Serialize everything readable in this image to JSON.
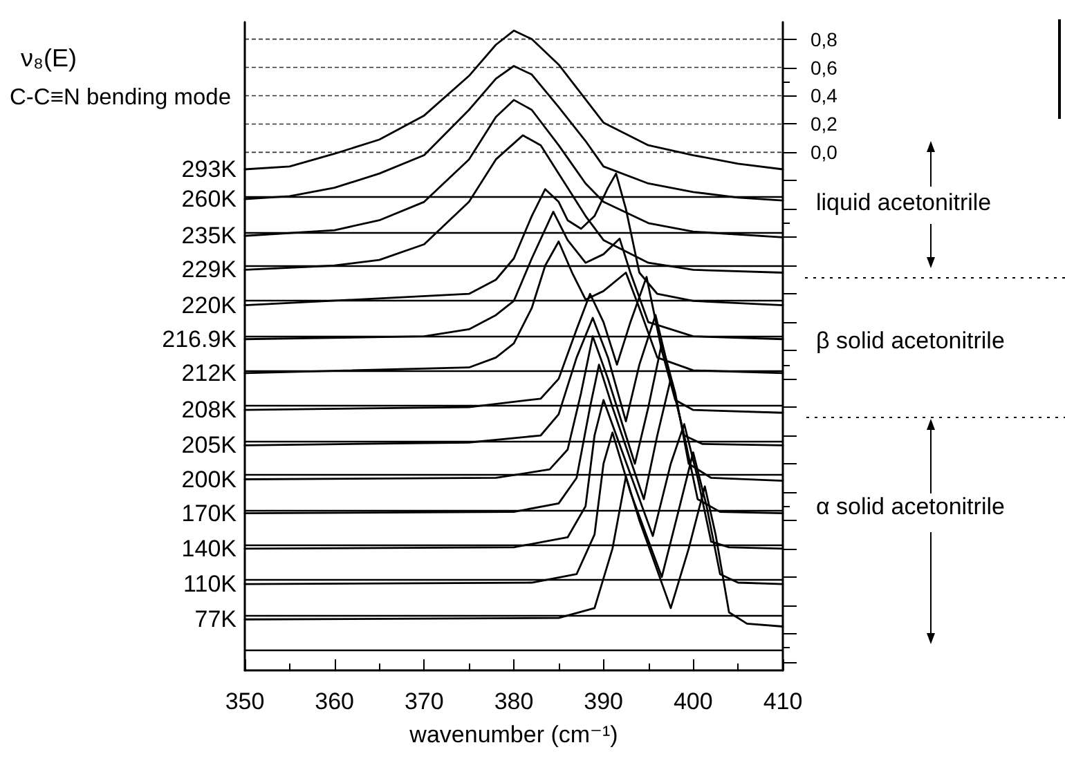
{
  "chart_data": {
    "type": "line",
    "title": "ν₈(E)",
    "subtitle": "C-C≡N bending mode",
    "xlabel": "wavenumber (cm⁻¹)",
    "annotations": [
      "liquid acetonitrile",
      "β solid acetonitrile",
      "α solid acetonitrile"
    ],
    "xlim": [
      350,
      410
    ],
    "xticks": [
      350,
      360,
      370,
      380,
      390,
      400,
      410
    ],
    "ylim": [
      -3.66,
      0.92
    ],
    "yticks": [
      {
        "value": 0.8,
        "label": "0,8"
      },
      {
        "value": 0.6,
        "label": "0,6"
      },
      {
        "value": 0.4,
        "label": "0,4"
      },
      {
        "value": 0.2,
        "label": "0,2"
      },
      {
        "value": 0,
        "label": "0,0"
      },
      {
        "value": -0.2,
        "label": null
      },
      {
        "value": -0.4,
        "label": null
      },
      {
        "value": -0.6,
        "label": null
      },
      {
        "value": -0.8,
        "label": null
      },
      {
        "value": -1,
        "label": null
      },
      {
        "value": -1.2,
        "label": null
      },
      {
        "value": -1.4,
        "label": null
      },
      {
        "value": -1.6,
        "label": null
      },
      {
        "value": -1.8,
        "label": null
      },
      {
        "value": -2,
        "label": null
      },
      {
        "value": -2.2,
        "label": null
      },
      {
        "value": -2.4,
        "label": null
      },
      {
        "value": -2.6,
        "label": null
      },
      {
        "value": -2.8,
        "label": null
      },
      {
        "value": -3,
        "label": null
      },
      {
        "value": -3.2,
        "label": null
      },
      {
        "value": -3.4,
        "label": null
      },
      {
        "value": -3.6,
        "label": null
      }
    ],
    "grid": "y",
    "legend": false,
    "marker": "none",
    "line_style": "solid",
    "ref_lines": [
      {
        "axis": "y",
        "value": -0.31,
        "color": "#000000"
      },
      {
        "axis": "y",
        "value": -0.57,
        "color": "#000000"
      },
      {
        "axis": "y",
        "value": -0.8,
        "color": "#000000"
      },
      {
        "axis": "y",
        "value": -1.05,
        "color": "#000000"
      },
      {
        "axis": "y",
        "value": -1.3,
        "color": "#000000"
      },
      {
        "axis": "y",
        "value": -1.54,
        "color": "#000000"
      },
      {
        "axis": "y",
        "value": -1.79,
        "color": "#000000"
      },
      {
        "axis": "y",
        "value": -2.04,
        "color": "#000000"
      },
      {
        "axis": "y",
        "value": -2.28,
        "color": "#000000"
      },
      {
        "axis": "y",
        "value": -2.53,
        "color": "#000000"
      },
      {
        "axis": "y",
        "value": -2.77,
        "color": "#000000"
      },
      {
        "axis": "y",
        "value": -3.02,
        "color": "#000000"
      },
      {
        "axis": "y",
        "value": -3.27,
        "color": "#000000"
      },
      {
        "axis": "y",
        "value": -3.52,
        "color": "#000000"
      }
    ],
    "series": [
      {
        "name": "293K",
        "color": "#000000",
        "x": [
          350,
          355,
          360,
          365,
          370,
          375,
          378,
          380,
          382,
          385,
          390,
          395,
          400,
          405,
          410
        ],
        "values": [
          -0.12,
          -0.1,
          -0.01,
          0.09,
          0.26,
          0.54,
          0.76,
          0.86,
          0.8,
          0.62,
          0.21,
          0.05,
          -0.02,
          -0.08,
          -0.12
        ]
      },
      {
        "name": "260K",
        "color": "#000000",
        "x": [
          350,
          355,
          360,
          365,
          370,
          375,
          378,
          380,
          382,
          385,
          388,
          390,
          395,
          400,
          405,
          410
        ],
        "values": [
          -0.33,
          -0.31,
          -0.25,
          -0.15,
          -0.02,
          0.3,
          0.52,
          0.61,
          0.55,
          0.32,
          0.08,
          -0.1,
          -0.22,
          -0.28,
          -0.32,
          -0.34
        ]
      },
      {
        "name": "235K",
        "color": "#000000",
        "x": [
          350,
          360,
          365,
          370,
          375,
          378,
          380,
          382,
          385,
          388,
          390,
          395,
          400,
          410
        ],
        "values": [
          -0.59,
          -0.55,
          -0.48,
          -0.35,
          -0.05,
          0.25,
          0.37,
          0.3,
          0.05,
          -0.22,
          -0.35,
          -0.5,
          -0.56,
          -0.6
        ]
      },
      {
        "name": "229K",
        "color": "#000000",
        "x": [
          350,
          360,
          365,
          370,
          375,
          378,
          381,
          383,
          385,
          388,
          390,
          395,
          400,
          410
        ],
        "values": [
          -0.83,
          -0.8,
          -0.76,
          -0.65,
          -0.35,
          -0.05,
          0.12,
          0.05,
          -0.15,
          -0.45,
          -0.62,
          -0.78,
          -0.83,
          -0.85
        ]
      },
      {
        "name": "220K",
        "color": "#000000",
        "x": [
          350,
          375,
          378,
          380,
          382,
          383.5,
          385,
          386,
          387.5,
          389,
          390.5,
          391.4,
          392.5,
          394,
          396,
          400,
          410
        ],
        "values": [
          -1.08,
          -1,
          -0.9,
          -0.75,
          -0.45,
          -0.26,
          -0.35,
          -0.48,
          -0.54,
          -0.45,
          -0.25,
          -0.15,
          -0.4,
          -0.85,
          -1,
          -1.05,
          -1.08
        ]
      },
      {
        "name": "216.9K",
        "color": "#000000",
        "x": [
          350,
          370,
          375,
          378,
          380,
          382,
          384.4,
          386,
          388,
          390,
          391.8,
          393,
          395,
          400,
          410
        ],
        "values": [
          -1.32,
          -1.3,
          -1.25,
          -1.15,
          -1.05,
          -0.75,
          -0.42,
          -0.62,
          -0.78,
          -0.72,
          -0.61,
          -0.85,
          -1.2,
          -1.3,
          -1.32
        ]
      },
      {
        "name": "212K",
        "color": "#000000",
        "x": [
          350,
          375,
          378,
          380,
          382,
          383.5,
          385,
          386.5,
          388,
          390,
          392.5,
          394,
          396,
          400,
          410
        ],
        "values": [
          -1.56,
          -1.52,
          -1.45,
          -1.35,
          -1.1,
          -0.8,
          -0.63,
          -0.85,
          -1.04,
          -0.98,
          -0.85,
          -1.1,
          -1.45,
          -1.54,
          -1.56
        ]
      },
      {
        "name": "208K",
        "color": "#000000",
        "x": [
          350,
          375,
          383,
          385,
          387,
          388.5,
          390,
          391.5,
          393,
          394.8,
          396.5,
          398,
          400,
          410
        ],
        "values": [
          -1.82,
          -1.8,
          -1.74,
          -1.6,
          -1.25,
          -1,
          -1.2,
          -1.5,
          -1.2,
          -0.88,
          -1.4,
          -1.75,
          -1.82,
          -1.84
        ]
      },
      {
        "name": "205K",
        "color": "#000000",
        "x": [
          350,
          375,
          383,
          385,
          387,
          388.8,
          390.5,
          392.5,
          394,
          395.8,
          397.5,
          399,
          401,
          410
        ],
        "values": [
          -2.07,
          -2.05,
          -2,
          -1.85,
          -1.45,
          -1.17,
          -1.45,
          -1.9,
          -1.5,
          -1.15,
          -1.6,
          -2,
          -2.06,
          -2.07
        ]
      },
      {
        "name": "200K",
        "color": "#000000",
        "x": [
          350,
          378,
          384,
          386,
          387.5,
          388.8,
          390.5,
          393.5,
          395,
          396.5,
          398,
          399.5,
          402,
          410
        ],
        "values": [
          -2.31,
          -2.3,
          -2.24,
          -2.1,
          -1.7,
          -1.3,
          -1.6,
          -2.2,
          -1.8,
          -1.35,
          -1.7,
          -2.2,
          -2.3,
          -2.32
        ]
      },
      {
        "name": "170K",
        "color": "#000000",
        "x": [
          350,
          380,
          385,
          387,
          388.5,
          389.5,
          391,
          394.5,
          396,
          397.5,
          399,
          400.5,
          403,
          410
        ],
        "values": [
          -2.55,
          -2.54,
          -2.48,
          -2.3,
          -1.8,
          -1.5,
          -1.8,
          -2.45,
          -2,
          -1.6,
          -2,
          -2.45,
          -2.54,
          -2.55
        ]
      },
      {
        "name": "140K",
        "color": "#000000",
        "x": [
          350,
          380,
          386,
          388,
          389,
          390,
          392,
          395.5,
          397.5,
          399,
          400.5,
          402,
          404,
          410
        ],
        "values": [
          -2.8,
          -2.79,
          -2.72,
          -2.5,
          -2,
          -1.75,
          -2.1,
          -2.71,
          -2.2,
          -1.92,
          -2.3,
          -2.75,
          -2.79,
          -2.8
        ]
      },
      {
        "name": "110K",
        "color": "#000000",
        "x": [
          350,
          382,
          387,
          389,
          390,
          391,
          393,
          396.5,
          398.5,
          400,
          401.5,
          403,
          405,
          410
        ],
        "values": [
          -3.05,
          -3.04,
          -2.98,
          -2.7,
          -2.2,
          -1.98,
          -2.4,
          -3,
          -2.5,
          -2.12,
          -2.5,
          -2.98,
          -3.04,
          -3.05
        ]
      },
      {
        "name": "77K",
        "color": "#000000",
        "x": [
          350,
          385,
          389,
          391,
          392.5,
          394,
          397.5,
          399.5,
          401.3,
          402.5,
          404,
          406,
          410
        ],
        "values": [
          -3.3,
          -3.29,
          -3.22,
          -2.8,
          -2.29,
          -2.6,
          -3.22,
          -2.8,
          -2.36,
          -2.7,
          -3.25,
          -3.33,
          -3.35
        ]
      }
    ]
  }
}
